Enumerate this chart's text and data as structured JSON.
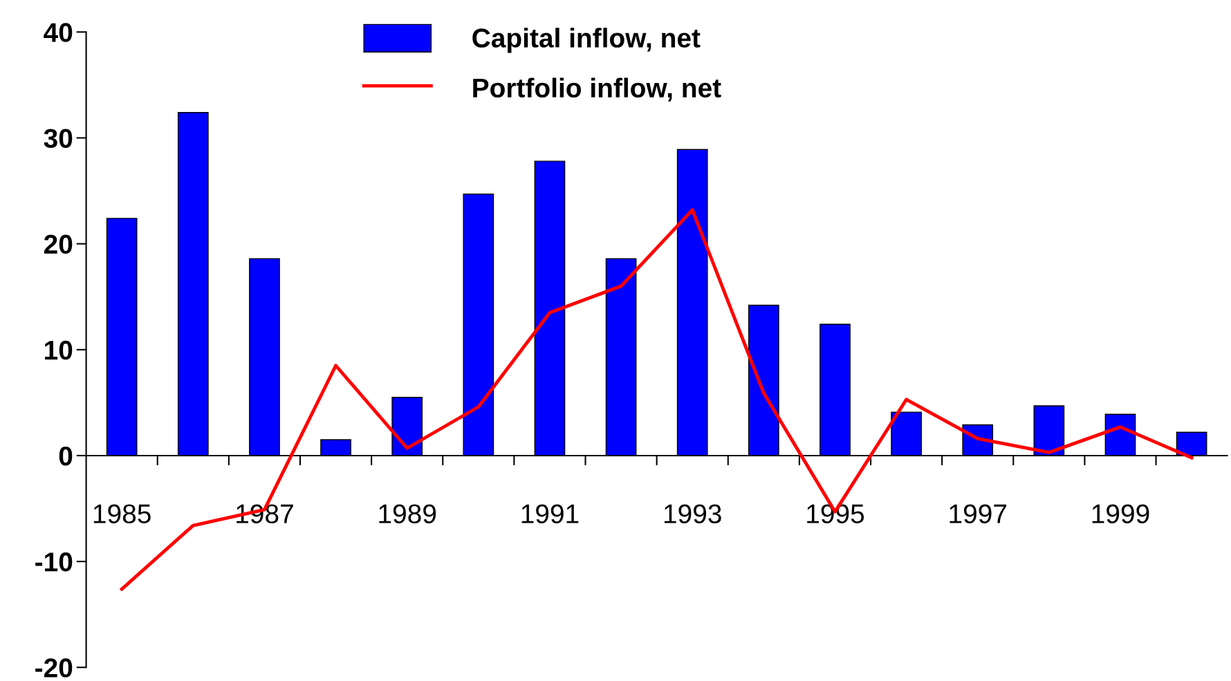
{
  "chart_data": {
    "type": "bar",
    "categories": [
      "1985",
      null,
      "1987",
      null,
      "1989",
      null,
      "1991",
      null,
      "1993",
      null,
      "1995",
      null,
      "1997",
      null,
      "1999",
      null
    ],
    "series": [
      {
        "name": "Capital inflow, net",
        "color": "#0000ff",
        "values": [
          22.4,
          32.4,
          18.6,
          1.5,
          5.5,
          24.7,
          27.8,
          18.6,
          28.9,
          14.2,
          12.4,
          4.1,
          2.9,
          4.7,
          3.9,
          2.2
        ]
      },
      {
        "name": "Portfolio inflow, net",
        "type": "line",
        "color": "#ff0000",
        "values": [
          -12.6,
          -6.6,
          -5.1,
          8.5,
          0.7,
          4.6,
          13.5,
          16.0,
          23.2,
          5.9,
          -5.3,
          5.3,
          1.6,
          0.3,
          2.7,
          -0.2
        ]
      }
    ],
    "ylim": [
      -20,
      40
    ],
    "yticks": [
      -20,
      -10,
      0,
      10,
      20,
      30,
      40
    ],
    "grid": false,
    "legend": "top",
    "marker": "none",
    "line_style": "solid"
  }
}
